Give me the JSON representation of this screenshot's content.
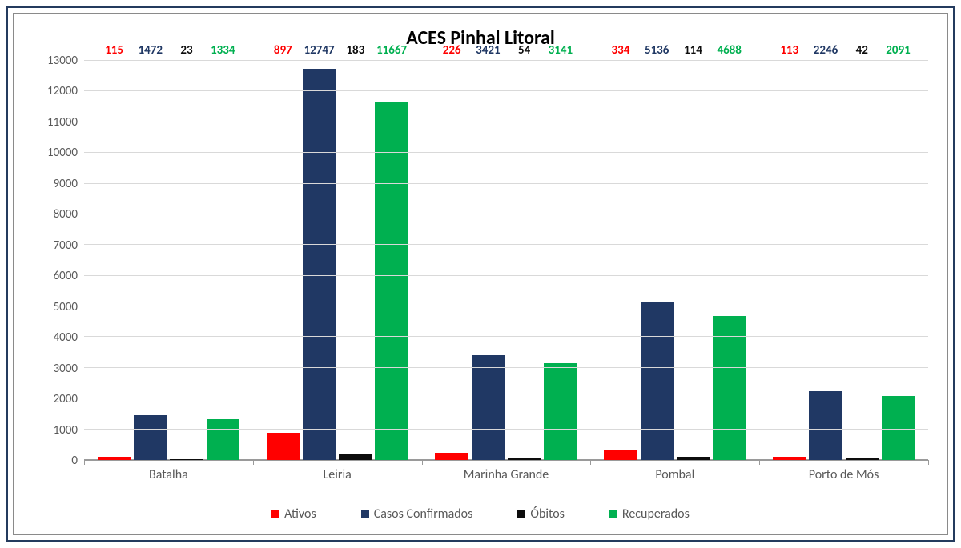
{
  "chart": {
    "title": "ACES Pinhal Litoral",
    "title_fontsize": 24,
    "title_fontweight": 700,
    "title_color": "#000000",
    "background_color": "#ffffff",
    "outer_border_color": "#243b5e",
    "inner_border_color": "#8a8a8a",
    "grid_color": "#d9d9d9",
    "axis_color": "#9a9a9a",
    "label_fontsize": 16,
    "label_color": "#595959",
    "type": "bar",
    "ylim_min": 0,
    "ylim_max": 13000,
    "ytick_step": 1000,
    "categories": [
      "Batalha",
      "Leiria",
      "Marinha Grande",
      "Pombal",
      "Porto de Mós"
    ],
    "series": [
      {
        "name": "Ativos",
        "color": "#ff0000",
        "label_color": "#ff0000",
        "values": [
          115,
          897,
          226,
          334,
          113
        ]
      },
      {
        "name": "Casos Confirmados",
        "color": "#203864",
        "label_color": "#203864",
        "values": [
          1472,
          12747,
          3421,
          5136,
          2246
        ]
      },
      {
        "name": "Óbitos",
        "color": "#0d0d0d",
        "label_color": "#0d0d0d",
        "values": [
          23,
          183,
          54,
          114,
          42
        ]
      },
      {
        "name": "Recuperados",
        "color": "#00b050",
        "label_color": "#00b050",
        "values": [
          1334,
          11667,
          3141,
          4688,
          2091
        ]
      }
    ],
    "bar_label_fontsize": 15,
    "bar_label_fontweight": 700,
    "legend_fontsize": 16
  }
}
